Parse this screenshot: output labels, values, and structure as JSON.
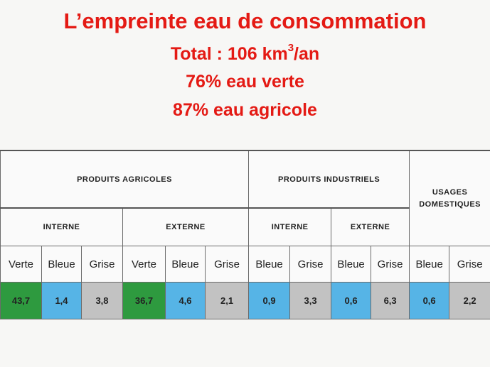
{
  "title": {
    "line1": "L’empreinte eau de consommation",
    "total_prefix": "Total : 106 km",
    "total_sup": "3",
    "total_suffix": "/an",
    "line3": "76% eau verte",
    "line4": "87% eau agricole"
  },
  "table": {
    "groups": {
      "agricoles": "PRODUITS AGRICOLES",
      "industriels": "PRODUITS INDUSTRIELS",
      "usages_line1": "USAGES",
      "usages_line2": "DOMESTIQUES"
    },
    "subgroups": [
      "INTERNE",
      "EXTERNE",
      "INTERNE",
      "EXTERNE"
    ],
    "labels": [
      "Verte",
      "Bleue",
      "Grise",
      "Verte",
      "Bleue",
      "Grise",
      "Bleue",
      "Grise",
      "Bleue",
      "Grise",
      "Bleue",
      "Grise"
    ],
    "values": [
      "43,7",
      "1,4",
      "3,8",
      "36,7",
      "4,6",
      "2,1",
      "0,9",
      "3,3",
      "0,6",
      "6,3",
      "0,6",
      "2,2"
    ],
    "colors": {
      "verte": "#2e9a3f",
      "bleue": "#56b4e6",
      "grise": "#c2c2c2",
      "title": "#e41a14"
    }
  }
}
